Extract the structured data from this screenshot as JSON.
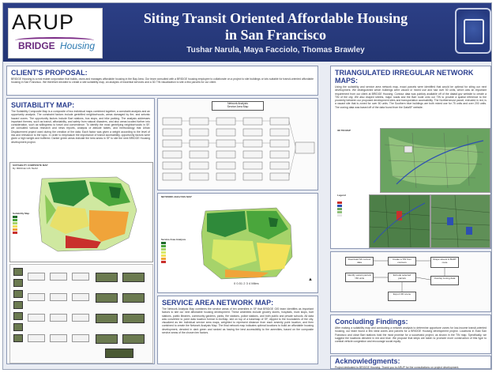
{
  "header": {
    "title_line1": "Siting Transit Oriented Affordable Housing",
    "title_line2": "in San Francisco",
    "authors": "Tushar Narula, Maya Facciolo, Thomas Brawley",
    "logo_arup": "ARUP",
    "logo_bridge": "BRIDGE",
    "logo_housing": "Housing"
  },
  "client": {
    "heading": "CLIENT'S PROPOSAL:",
    "text": "BRIDGE Housing is a real estate corporation that builds, owns and manages affordable housing in the Bay Area. Our team consulted with a BRIDGE housing employee to collaborate on a project to site buildings or lots suitable for transit-oriented affordable housing in San Francisco. We therefore decided to create a site suitability map, an analysis of essential services and a 3D TIN visualization to site a few parcels for our client."
  },
  "suitability": {
    "heading": "SUITABILITY MAP:",
    "text": "The Suitability Composite Map is a composite of two individual maps combined together, a constraint analysis and an opportunity analysis. The constraint factors include gentrified neighborhoods, areas damaged by fire, and seismic hazard zones. The opportunity factors include Bart stations, bus stops, and bike parking. The analysis addresses important themes, such as transit, affordability, and safety from natural disasters, and also areas located further into consideration, such as willingness to travel and convenience. To identify the most gentrifying neighborhoods in SF, we consulted various research and news reports, analysis of attitude tables, and methodology that Urban Displacement project used during the creation of the data. Each factor was given a weight according to the level of risk and relevance to the topic. In order to emphasize the importance of transit accessibility, opportunity factors were given a high weight and buffered. Darker green areas indicate the best areas in SF to site the next BRIDGE Housing development project.",
    "map_title": "SUITABILITY COMPOSITE MAP",
    "map_sub": "By: BRIDGE GIS TEAM",
    "legend_title": "Suitability Map"
  },
  "workflow": {
    "title_line1": "Network Analysis",
    "title_line2": "Service Area Map"
  },
  "service_map": {
    "title": "NETWORK ANALYSIS MAP",
    "legend_title": "Service Area Analysis",
    "scale": "0 0.51  2   3   4",
    "scale_unit": "Miles"
  },
  "service": {
    "heading": "SERVICE AREA NETWORK MAP:",
    "text": "The Network Analysis Map combines the service areas of ten amenities in SF that BRIDGE GIS team identifies as important factors to site our next affordable housing development. These amenities include grocery stores, hospitals, muni stops, bart stations, public libraries, community gardens, parks, fire stations, police stations, and both public and private schools. All data was converted to point data location format in ArcMap, laid on top of a basemap of SF, clipped to the boundaries of the city, visualized as ten individual service area maps, weighted to represent distance from each amenity point location, and then combined to create the Network Analysis Map. The final network map indicates optimal locations to build an affordable housing development, denoted in dark green and ranked as having the best accessibility to the amenities, based on the composite service areas of the chosen ten factors."
  },
  "tin": {
    "heading": "TRIANGULATED IRREGULAR NETWORK MAPS:",
    "text": "Using the suitability and service area network map, exact parcels were identified that would be optimal for siting our next development. We distinguished which buildings were vacant or mixed use and had over 50 units, which was an important requirement from our client at BRIDGE Housing. Contour data was publicly available off of the datasf.gov website to create a TIN of the city. We also draped streets, major roads and the Bart route onto our TIN to provide a spatial reference to the proximity between our proposed development sites and transportation accessibility. The Northernmost parcel, extruded in red, is a vacant site that is zoned for over 50 units. The Southern blue buildings are both mixed use for 75 units and over 200 units. The zoning data was based off of the data found from the DataSF website.",
    "map_title": "3D TIN MAP",
    "legend_title": "Legend"
  },
  "flow_boxes": [
    "Download SF contour data",
    "Create a TIN from contours",
    "Drape streets & BART route",
    "Identify vacant parcels >50 units",
    "Extrude selected parcels",
    "Overlay zoning data",
    "Export 3D scene"
  ],
  "conclusion": {
    "heading": "Concluding Findings:",
    "text": "After making a suitability map and conducting a network analysis to determine opportune zones for low-income transit-oriented housing, our team found a few ideal zones and parcels for a BRIDGE Housing development project. Locations in East San Francisco and close Bart stations hold the most promise for a successful project, as shown in the TIN map. Specifically, we suggest the locations denoted in red and blue. We propose that steps are taken to promote more construction of this type to combat vehicle congestion and encourage social equity."
  },
  "ack": {
    "heading": "Acknowledgments:",
    "text": "Project dedicated to BRIDGE Housing. Thank you to ARUP for the consultations on project development."
  },
  "colors": {
    "header_bg": "#263a7f",
    "heading_blue": "#2b3f8f",
    "dark_green": "#1f6b2a",
    "light_green": "#a6d36a",
    "yellow": "#f1e25a",
    "red": "#c9302c"
  }
}
